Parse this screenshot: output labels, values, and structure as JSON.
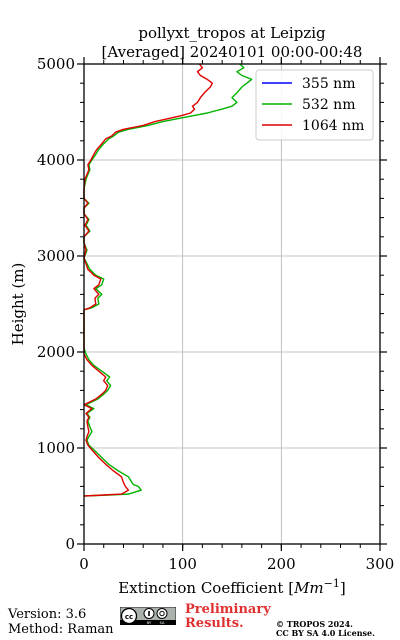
{
  "chart_data": {
    "type": "line",
    "title_line1": "pollyxt_tropos at Leipzig",
    "title_line2": "[Averaged] 20240101 00:00-00:48",
    "xlabel": "Extinction Coefficient [",
    "xlabel_unit": "Mm",
    "xlabel_exp": "−1",
    "xlabel_end": "]",
    "ylabel": "Height (m)",
    "xlim": [
      0,
      300
    ],
    "ylim": [
      0,
      5000
    ],
    "xticks": [
      "0",
      "100",
      "200",
      "300"
    ],
    "yticks": [
      "0",
      "1000",
      "2000",
      "3000",
      "4000",
      "5000"
    ],
    "grid": true,
    "legend_position": "top-right",
    "series": [
      {
        "name": "355 nm",
        "color": "#0000ff",
        "points": []
      },
      {
        "name": "532 nm",
        "color": "#00b400",
        "points": [
          [
            0,
            500
          ],
          [
            25,
            510
          ],
          [
            45,
            520
          ],
          [
            58,
            560
          ],
          [
            55,
            600
          ],
          [
            50,
            620
          ],
          [
            48,
            650
          ],
          [
            45,
            700
          ],
          [
            35,
            760
          ],
          [
            25,
            830
          ],
          [
            18,
            900
          ],
          [
            10,
            980
          ],
          [
            5,
            1030
          ],
          [
            3,
            1080
          ],
          [
            5,
            1120
          ],
          [
            8,
            1170
          ],
          [
            6,
            1220
          ],
          [
            4,
            1280
          ],
          [
            6,
            1320
          ],
          [
            3,
            1360
          ],
          [
            10,
            1410
          ],
          [
            2,
            1450
          ],
          [
            14,
            1510
          ],
          [
            20,
            1560
          ],
          [
            24,
            1600
          ],
          [
            27,
            1650
          ],
          [
            23,
            1700
          ],
          [
            26,
            1740
          ],
          [
            18,
            1800
          ],
          [
            10,
            1860
          ],
          [
            5,
            1920
          ],
          [
            2,
            1980
          ],
          [
            0,
            2040
          ],
          [
            0,
            2440
          ],
          [
            8,
            2460
          ],
          [
            15,
            2500
          ],
          [
            14,
            2560
          ],
          [
            18,
            2600
          ],
          [
            12,
            2660
          ],
          [
            18,
            2700
          ],
          [
            20,
            2760
          ],
          [
            12,
            2800
          ],
          [
            6,
            2860
          ],
          [
            3,
            2920
          ],
          [
            0,
            2980
          ],
          [
            3,
            3060
          ],
          [
            0,
            3140
          ],
          [
            0,
            3200
          ],
          [
            6,
            3260
          ],
          [
            2,
            3320
          ],
          [
            5,
            3380
          ],
          [
            0,
            3440
          ],
          [
            0,
            3500
          ],
          [
            5,
            3550
          ],
          [
            0,
            3600
          ],
          [
            0,
            3700
          ],
          [
            2,
            3800
          ],
          [
            4,
            3850
          ],
          [
            6,
            3900
          ],
          [
            5,
            3950
          ],
          [
            8,
            4000
          ],
          [
            12,
            4060
          ],
          [
            15,
            4110
          ],
          [
            20,
            4170
          ],
          [
            25,
            4220
          ],
          [
            30,
            4250
          ],
          [
            35,
            4290
          ],
          [
            45,
            4320
          ],
          [
            55,
            4340
          ],
          [
            65,
            4360
          ],
          [
            80,
            4400
          ],
          [
            95,
            4430
          ],
          [
            110,
            4460
          ],
          [
            125,
            4490
          ],
          [
            140,
            4530
          ],
          [
            150,
            4560
          ],
          [
            155,
            4600
          ],
          [
            150,
            4650
          ],
          [
            155,
            4700
          ],
          [
            160,
            4760
          ],
          [
            165,
            4800
          ],
          [
            170,
            4840
          ],
          [
            160,
            4880
          ],
          [
            155,
            4920
          ],
          [
            162,
            4960
          ],
          [
            158,
            5000
          ]
        ]
      },
      {
        "name": "1064 nm",
        "color": "#e00000",
        "points": [
          [
            0,
            500
          ],
          [
            20,
            510
          ],
          [
            38,
            520
          ],
          [
            45,
            560
          ],
          [
            42,
            600
          ],
          [
            40,
            640
          ],
          [
            38,
            700
          ],
          [
            30,
            760
          ],
          [
            22,
            830
          ],
          [
            15,
            900
          ],
          [
            8,
            980
          ],
          [
            4,
            1030
          ],
          [
            2,
            1080
          ],
          [
            3,
            1120
          ],
          [
            5,
            1170
          ],
          [
            4,
            1220
          ],
          [
            3,
            1280
          ],
          [
            5,
            1320
          ],
          [
            2,
            1360
          ],
          [
            8,
            1410
          ],
          [
            0,
            1450
          ],
          [
            12,
            1510
          ],
          [
            18,
            1560
          ],
          [
            22,
            1600
          ],
          [
            24,
            1650
          ],
          [
            20,
            1700
          ],
          [
            22,
            1740
          ],
          [
            15,
            1800
          ],
          [
            8,
            1860
          ],
          [
            3,
            1920
          ],
          [
            0,
            1980
          ],
          [
            0,
            2040
          ],
          [
            0,
            2440
          ],
          [
            6,
            2460
          ],
          [
            12,
            2500
          ],
          [
            11,
            2560
          ],
          [
            15,
            2600
          ],
          [
            10,
            2660
          ],
          [
            15,
            2700
          ],
          [
            17,
            2760
          ],
          [
            10,
            2800
          ],
          [
            4,
            2860
          ],
          [
            2,
            2920
          ],
          [
            0,
            2980
          ],
          [
            2,
            3060
          ],
          [
            0,
            3140
          ],
          [
            0,
            3200
          ],
          [
            5,
            3260
          ],
          [
            1,
            3320
          ],
          [
            4,
            3380
          ],
          [
            0,
            3440
          ],
          [
            0,
            3500
          ],
          [
            4,
            3550
          ],
          [
            0,
            3600
          ],
          [
            0,
            3700
          ],
          [
            1,
            3800
          ],
          [
            3,
            3850
          ],
          [
            5,
            3900
          ],
          [
            4,
            3950
          ],
          [
            7,
            4000
          ],
          [
            10,
            4060
          ],
          [
            13,
            4110
          ],
          [
            18,
            4170
          ],
          [
            22,
            4220
          ],
          [
            28,
            4250
          ],
          [
            32,
            4290
          ],
          [
            40,
            4320
          ],
          [
            50,
            4340
          ],
          [
            60,
            4360
          ],
          [
            72,
            4400
          ],
          [
            85,
            4430
          ],
          [
            98,
            4460
          ],
          [
            108,
            4490
          ],
          [
            112,
            4530
          ],
          [
            110,
            4560
          ],
          [
            115,
            4600
          ],
          [
            118,
            4650
          ],
          [
            122,
            4700
          ],
          [
            128,
            4760
          ],
          [
            130,
            4800
          ],
          [
            125,
            4840
          ],
          [
            118,
            4880
          ],
          [
            115,
            4920
          ],
          [
            120,
            4960
          ],
          [
            117,
            5000
          ]
        ]
      }
    ]
  },
  "footer": {
    "version": "Version: 3.6",
    "method": "Method: Raman",
    "prelim_line1": "Preliminary",
    "prelim_line2": "Results.",
    "prelim_color": "#e03030",
    "copyright_line1": "© TROPOS 2024.",
    "copyright_line2": "CC BY SA 4.0 License.",
    "cc_icons": "cc-by-sa-license-badge"
  }
}
